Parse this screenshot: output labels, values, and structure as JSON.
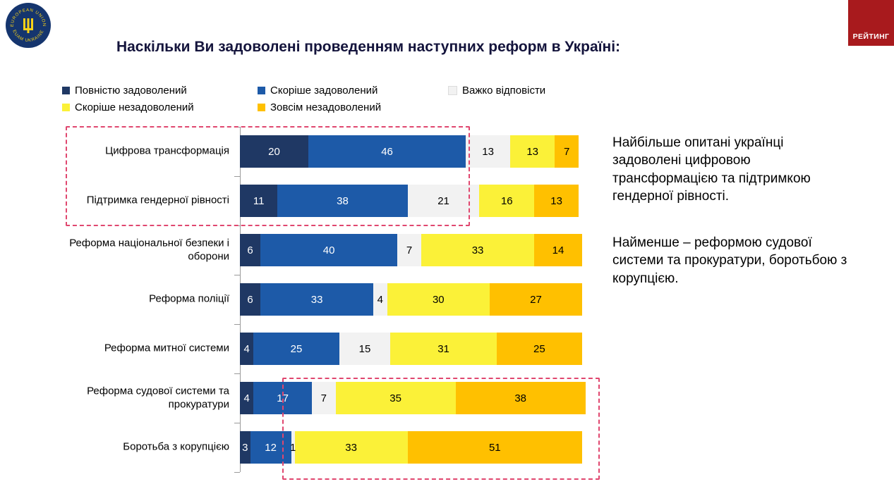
{
  "page": {
    "title": "Наскільки Ви задоволені проведенням наступних реформ в Україні:"
  },
  "logos": {
    "eu": {
      "top_text": "EUROPEAN UNION",
      "bottom_text": "EUAM UKRAINE",
      "bg": "#15356E",
      "accent": "#F7D117"
    },
    "rating": {
      "label": "РЕЙТИНГ",
      "bg": "#A81A1D"
    }
  },
  "chart_data": {
    "type": "bar",
    "orientation": "horizontal",
    "stacked": true,
    "units": "percent",
    "xlim": [
      0,
      100
    ],
    "title": "Наскільки Ви задоволені проведенням наступних реформ в Україні:",
    "legend_position": "top",
    "grid": false,
    "categories": [
      "Цифрова трансформація",
      "Підтримка гендерної рівності",
      "Реформа національної безпеки і оборони",
      "Реформа поліції",
      "Реформа митної системи",
      "Реформа судової системи та прокуратури",
      "Боротьба з корупцією"
    ],
    "series": [
      {
        "name": "Повністю задоволений",
        "color": "#1F3864",
        "label_color": "#FFFFFF",
        "values": [
          20,
          11,
          6,
          6,
          4,
          4,
          3
        ]
      },
      {
        "name": "Скоріше задоволений",
        "color": "#1D5AA8",
        "label_color": "#FFFFFF",
        "values": [
          46,
          38,
          40,
          33,
          25,
          17,
          12
        ]
      },
      {
        "name": "Важко відповісти",
        "color": "#F2F2F2",
        "label_color": "#000000",
        "values": [
          13,
          21,
          7,
          4,
          15,
          7,
          1
        ]
      },
      {
        "name": "Скоріше незадоволений",
        "color": "#FBF138",
        "label_color": "#000000",
        "values": [
          13,
          16,
          33,
          30,
          31,
          35,
          33
        ]
      },
      {
        "name": "Зовсім незадоволений",
        "color": "#FFC000",
        "label_color": "#000000",
        "values": [
          7,
          13,
          14,
          27,
          25,
          38,
          51
        ]
      }
    ],
    "highlight_color": "#E0476F"
  },
  "annotations": {
    "note_1": "Найбільше опитані українці задоволені цифровою трансформацією та підтримкою гендерної рівності.",
    "note_2": "Найменше – реформою судової системи та прокуратури, боротьбою з корупцією."
  }
}
